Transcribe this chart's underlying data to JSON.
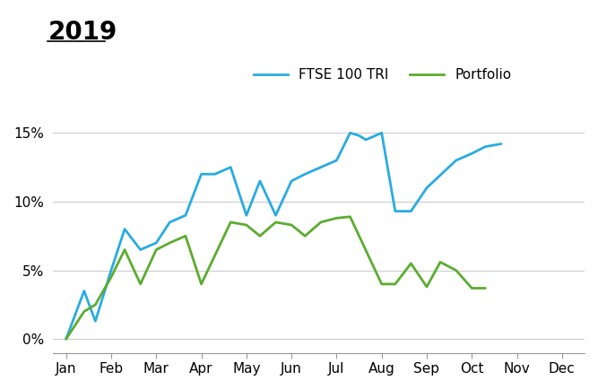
{
  "title": "2019",
  "title_fontsize": 20,
  "background_color": "#ffffff",
  "ftse_color": "#29ABE2",
  "portfolio_color": "#5BAD2F",
  "yticks": [
    0.0,
    0.05,
    0.1,
    0.15
  ],
  "ytick_labels": [
    "0%",
    "5%",
    "10%",
    "15%"
  ],
  "months": [
    "Jan",
    "Feb",
    "Mar",
    "Apr",
    "May",
    "Jun",
    "Jul",
    "Aug",
    "Sep",
    "Oct",
    "Nov",
    "Dec"
  ],
  "ftse_x": [
    0.0,
    0.4,
    0.65,
    1.0,
    1.3,
    1.65,
    2.0,
    2.3,
    2.65,
    3.0,
    3.3,
    3.65,
    4.0,
    4.3,
    4.65,
    5.0,
    5.3,
    5.65,
    6.0,
    6.3,
    6.5,
    6.65,
    7.0,
    7.3,
    7.65,
    8.0,
    8.65,
    9.0,
    9.3,
    9.65
  ],
  "ftse_y": [
    0.0,
    0.035,
    0.013,
    0.05,
    0.08,
    0.065,
    0.07,
    0.085,
    0.09,
    0.12,
    0.12,
    0.125,
    0.09,
    0.115,
    0.09,
    0.115,
    0.12,
    0.125,
    0.13,
    0.15,
    0.148,
    0.145,
    0.15,
    0.093,
    0.093,
    0.11,
    0.13,
    0.135,
    0.14,
    0.142
  ],
  "portfolio_x": [
    0.0,
    0.4,
    0.65,
    1.0,
    1.3,
    1.65,
    2.0,
    2.3,
    2.65,
    3.0,
    3.65,
    4.0,
    4.3,
    4.65,
    5.0,
    5.3,
    5.65,
    6.0,
    6.3,
    7.0,
    7.3,
    7.65,
    8.0,
    8.3,
    8.65,
    9.0,
    9.3
  ],
  "portfolio_y": [
    0.0,
    0.02,
    0.025,
    0.045,
    0.065,
    0.04,
    0.065,
    0.07,
    0.075,
    0.04,
    0.085,
    0.083,
    0.075,
    0.085,
    0.083,
    0.075,
    0.085,
    0.088,
    0.089,
    0.04,
    0.04,
    0.055,
    0.038,
    0.056,
    0.05,
    0.037,
    0.037
  ],
  "legend_labels": [
    "FTSE 100 TRI",
    "Portfolio"
  ],
  "grid_color": "#cccccc",
  "spine_color": "#999999"
}
